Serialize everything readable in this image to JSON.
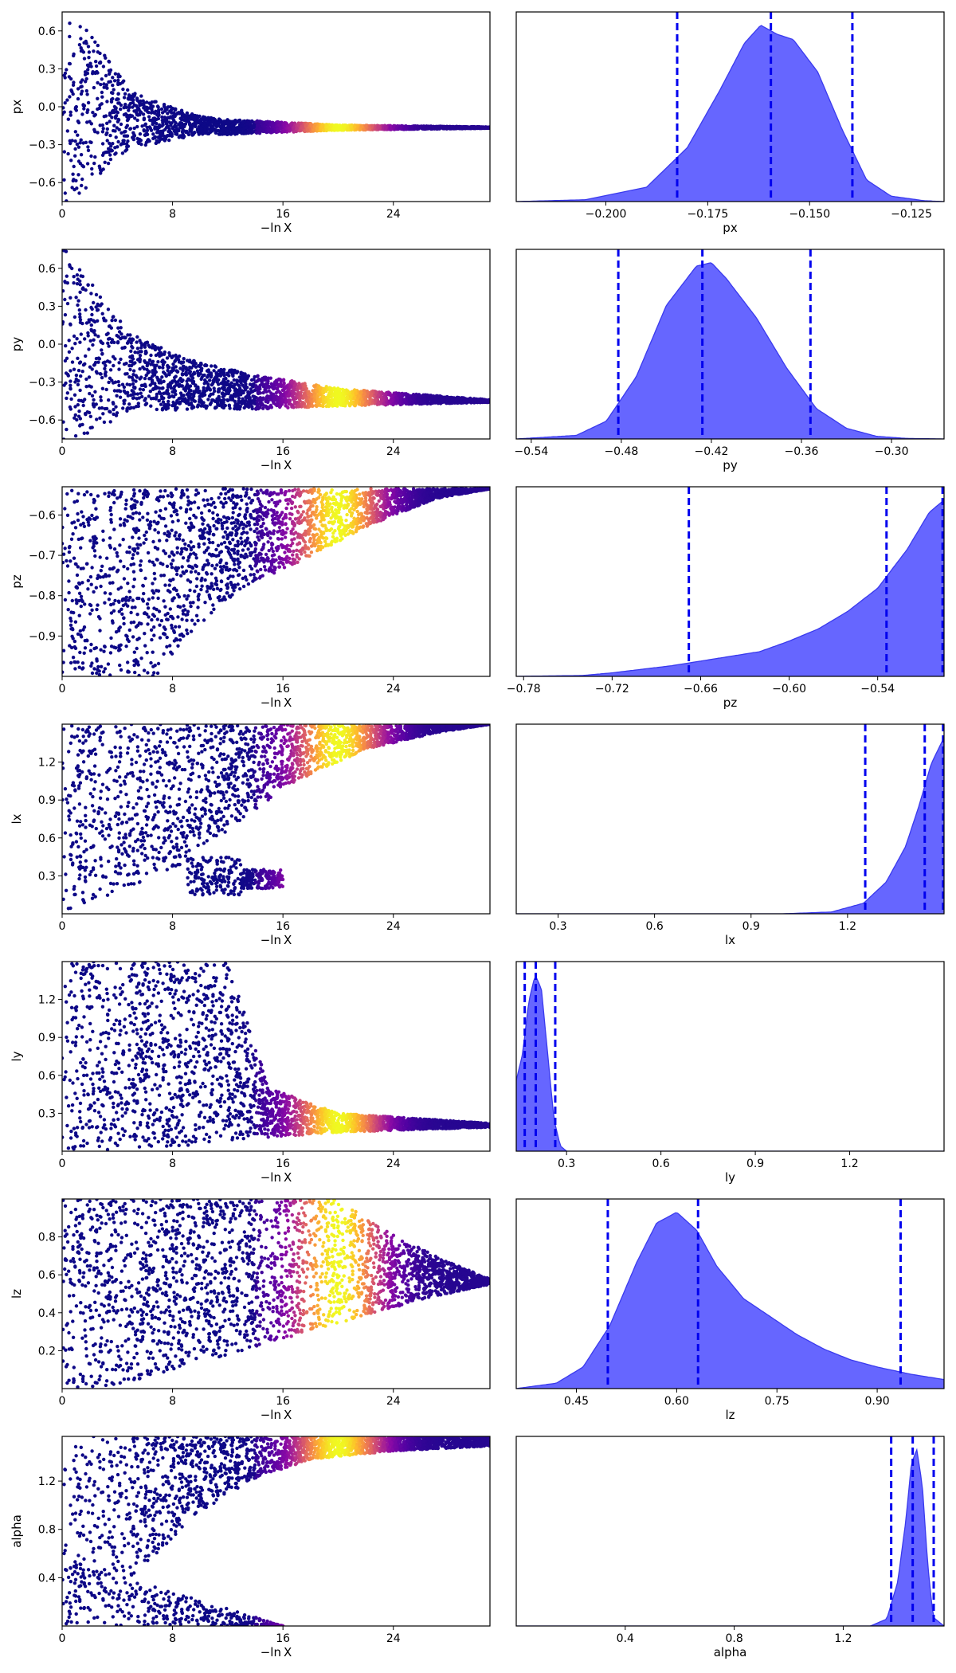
{
  "figure": {
    "background": "#ffffff",
    "kde_fill_color": "#6666ff",
    "quantile_line_color": "#0000ee",
    "colormap": "plasma"
  },
  "chart_data": [
    {
      "type": "scatter",
      "param": "px",
      "xlabel": "−ln X",
      "ylabel": "px",
      "xlim": [
        0,
        31
      ],
      "ylim": [
        -0.75,
        0.75
      ],
      "xticks": [
        "0",
        "8",
        "16",
        "24"
      ],
      "yticks": [
        "0.6",
        "0.3",
        "0.0",
        "−0.3",
        "−0.6"
      ],
      "profile": {
        "center": [
          [
            0,
            0
          ],
          [
            3,
            -0.03
          ],
          [
            6,
            -0.12
          ],
          [
            12,
            -0.16
          ],
          [
            20,
            -0.165
          ],
          [
            31,
            -0.165
          ]
        ],
        "spread": [
          [
            0,
            0.8
          ],
          [
            2,
            0.6
          ],
          [
            5,
            0.22
          ],
          [
            10,
            0.07
          ],
          [
            20,
            0.02
          ],
          [
            31,
            0.005
          ]
        ]
      }
    },
    {
      "type": "area",
      "param": "px",
      "xlabel": "px",
      "xlim": [
        -0.222,
        -0.117
      ],
      "xticks": [
        "−0.200",
        "−0.175",
        "−0.150",
        "−0.125"
      ],
      "kde": {
        "x": [
          -0.222,
          -0.205,
          -0.19,
          -0.18,
          -0.172,
          -0.166,
          -0.162,
          -0.158,
          -0.154,
          -0.148,
          -0.142,
          -0.136,
          -0.13,
          -0.122,
          -0.117
        ],
        "density": [
          0.0,
          0.01,
          0.08,
          0.3,
          0.62,
          0.88,
          0.98,
          0.93,
          0.9,
          0.72,
          0.4,
          0.12,
          0.03,
          0.005,
          0.0
        ]
      },
      "quantiles": [
        -0.1825,
        -0.1595,
        -0.1395
      ]
    },
    {
      "type": "scatter",
      "param": "py",
      "xlabel": "−ln X",
      "ylabel": "py",
      "xlim": [
        0,
        31
      ],
      "ylim": [
        -0.75,
        0.75
      ],
      "xticks": [
        "0",
        "8",
        "16",
        "24"
      ],
      "yticks": [
        "0.6",
        "0.3",
        "0.0",
        "−0.3",
        "−0.6"
      ],
      "profile": {
        "center": [
          [
            0,
            0
          ],
          [
            3,
            -0.15
          ],
          [
            8,
            -0.3
          ],
          [
            14,
            -0.38
          ],
          [
            20,
            -0.42
          ],
          [
            31,
            -0.45
          ]
        ],
        "spread": [
          [
            0,
            0.8
          ],
          [
            2,
            0.6
          ],
          [
            5,
            0.3
          ],
          [
            10,
            0.18
          ],
          [
            20,
            0.07
          ],
          [
            31,
            0.01
          ]
        ]
      }
    },
    {
      "type": "area",
      "param": "py",
      "xlabel": "py",
      "xlim": [
        -0.55,
        -0.265
      ],
      "xticks": [
        "−0.54",
        "−0.48",
        "−0.42",
        "−0.36",
        "−0.30"
      ],
      "kde": {
        "x": [
          -0.55,
          -0.51,
          -0.49,
          -0.47,
          -0.45,
          -0.43,
          -0.42,
          -0.41,
          -0.39,
          -0.37,
          -0.35,
          -0.33,
          -0.31,
          -0.29,
          -0.265
        ],
        "density": [
          0.0,
          0.02,
          0.1,
          0.35,
          0.75,
          0.97,
          0.99,
          0.9,
          0.68,
          0.4,
          0.17,
          0.06,
          0.015,
          0.003,
          0.0
        ]
      },
      "quantiles": [
        -0.482,
        -0.426,
        -0.354
      ]
    },
    {
      "type": "scatter",
      "param": "pz",
      "xlabel": "−ln X",
      "ylabel": "pz",
      "xlim": [
        0,
        31
      ],
      "ylim": [
        -1.0,
        -0.53
      ],
      "xticks": [
        "0",
        "8",
        "16",
        "24"
      ],
      "yticks": [
        "−0.6",
        "−0.7",
        "−0.8",
        "−0.9"
      ],
      "profile": {
        "lower": [
          [
            0,
            -1.0
          ],
          [
            7,
            -1.0
          ],
          [
            9,
            -0.9
          ],
          [
            13,
            -0.78
          ],
          [
            17,
            -0.72
          ],
          [
            22,
            -0.63
          ],
          [
            27,
            -0.56
          ],
          [
            31,
            -0.535
          ]
        ],
        "upper": [
          [
            0,
            -0.535
          ],
          [
            31,
            -0.535
          ]
        ]
      }
    },
    {
      "type": "area",
      "param": "pz",
      "xlabel": "pz",
      "xlim": [
        -0.785,
        -0.495
      ],
      "xticks": [
        "−0.78",
        "−0.72",
        "−0.66",
        "−0.60",
        "−0.54"
      ],
      "kde": {
        "x": [
          -0.785,
          -0.74,
          -0.72,
          -0.68,
          -0.65,
          -0.62,
          -0.6,
          -0.58,
          -0.56,
          -0.54,
          -0.52,
          -0.505,
          -0.495
        ],
        "density": [
          0.0,
          0.005,
          0.02,
          0.06,
          0.1,
          0.14,
          0.2,
          0.27,
          0.37,
          0.5,
          0.72,
          0.93,
          1.0
        ]
      },
      "quantiles": [
        -0.668,
        -0.534,
        -0.496
      ]
    },
    {
      "type": "scatter",
      "param": "lx",
      "xlabel": "−ln X",
      "ylabel": "lx",
      "xlim": [
        0,
        31
      ],
      "ylim": [
        0.0,
        1.5
      ],
      "xticks": [
        "0",
        "8",
        "16",
        "24"
      ],
      "yticks": [
        "1.2",
        "0.9",
        "0.6",
        "0.3"
      ],
      "profile": {
        "lower": [
          [
            0,
            0
          ],
          [
            9,
            0.4
          ],
          [
            13,
            0.75
          ],
          [
            17,
            1.05
          ],
          [
            22,
            1.3
          ],
          [
            27,
            1.43
          ],
          [
            31,
            1.5
          ]
        ],
        "upper": [
          [
            0,
            1.5
          ],
          [
            31,
            1.5
          ]
        ],
        "islands": [
          [
            9,
            13,
            0.15,
            0.45
          ],
          [
            13,
            16,
            0.2,
            0.35
          ]
        ]
      }
    },
    {
      "type": "area",
      "param": "lx",
      "xlabel": "lx",
      "xlim": [
        0.17,
        1.5
      ],
      "xticks": [
        "0.3",
        "0.6",
        "0.9",
        "1.2"
      ],
      "kde": {
        "x": [
          0.17,
          1.0,
          1.15,
          1.25,
          1.32,
          1.38,
          1.42,
          1.46,
          1.5
        ],
        "density": [
          0.0,
          0.0,
          0.01,
          0.06,
          0.18,
          0.38,
          0.6,
          0.85,
          1.0
        ]
      },
      "quantiles": [
        1.255,
        1.44,
        1.497
      ]
    },
    {
      "type": "scatter",
      "param": "ly",
      "xlabel": "−ln X",
      "ylabel": "ly",
      "xlim": [
        0,
        31
      ],
      "ylim": [
        0.0,
        1.5
      ],
      "xticks": [
        "0",
        "8",
        "16",
        "24"
      ],
      "yticks": [
        "1.2",
        "0.9",
        "0.6",
        "0.3"
      ],
      "profile": {
        "lower": [
          [
            0,
            0
          ],
          [
            8,
            0.03
          ],
          [
            14,
            0.1
          ],
          [
            20,
            0.15
          ],
          [
            31,
            0.19
          ]
        ],
        "upper": [
          [
            0,
            1.5
          ],
          [
            8,
            1.5
          ],
          [
            12,
            1.5
          ],
          [
            15,
            0.5
          ],
          [
            20,
            0.3
          ],
          [
            31,
            0.22
          ]
        ]
      }
    },
    {
      "type": "area",
      "param": "ly",
      "xlabel": "ly",
      "xlim": [
        0.14,
        1.5
      ],
      "xticks": [
        "0.3",
        "0.6",
        "0.9",
        "1.2"
      ],
      "kde": {
        "x": [
          0.14,
          0.16,
          0.18,
          0.2,
          0.22,
          0.24,
          0.26,
          0.28,
          0.3,
          1.5
        ],
        "density": [
          0.4,
          0.55,
          0.85,
          1.0,
          0.92,
          0.55,
          0.18,
          0.03,
          0.0,
          0.0
        ]
      },
      "quantiles": [
        0.167,
        0.202,
        0.264
      ]
    },
    {
      "type": "scatter",
      "param": "lz",
      "xlabel": "−ln X",
      "ylabel": "lz",
      "xlim": [
        0,
        31
      ],
      "ylim": [
        0.0,
        1.0
      ],
      "xticks": [
        "0",
        "8",
        "16",
        "24"
      ],
      "yticks": [
        "0.8",
        "0.6",
        "0.4",
        "0.2"
      ],
      "profile": {
        "lower": [
          [
            0,
            0
          ],
          [
            4,
            0.02
          ],
          [
            8,
            0.1
          ],
          [
            14,
            0.22
          ],
          [
            20,
            0.34
          ],
          [
            26,
            0.47
          ],
          [
            31,
            0.55
          ]
        ],
        "upper": [
          [
            0,
            1.0
          ],
          [
            20,
            1.0
          ],
          [
            23,
            0.85
          ],
          [
            27,
            0.7
          ],
          [
            31,
            0.58
          ]
        ]
      }
    },
    {
      "type": "area",
      "param": "lz",
      "xlabel": "lz",
      "xlim": [
        0.36,
        1.0
      ],
      "xticks": [
        "0.45",
        "0.60",
        "0.75",
        "0.90"
      ],
      "kde": {
        "x": [
          0.36,
          0.42,
          0.46,
          0.5,
          0.54,
          0.57,
          0.6,
          0.63,
          0.66,
          0.7,
          0.74,
          0.78,
          0.82,
          0.86,
          0.9,
          0.95,
          1.0
        ],
        "density": [
          0.0,
          0.03,
          0.12,
          0.35,
          0.7,
          0.92,
          0.98,
          0.88,
          0.68,
          0.5,
          0.4,
          0.3,
          0.22,
          0.16,
          0.12,
          0.08,
          0.05
        ]
      },
      "quantiles": [
        0.497,
        0.632,
        0.935
      ]
    },
    {
      "type": "scatter",
      "param": "alpha",
      "xlabel": "−ln X",
      "ylabel": "alpha",
      "xlim": [
        0,
        31
      ],
      "ylim": [
        0.0,
        1.57
      ],
      "xticks": [
        "0",
        "8",
        "16",
        "24"
      ],
      "yticks": [
        "1.2",
        "0.8",
        "0.4"
      ],
      "profile": {
        "lower": [
          [
            0,
            0
          ],
          [
            6,
            0.5
          ],
          [
            10,
            0.95
          ],
          [
            14,
            1.22
          ],
          [
            18,
            1.38
          ],
          [
            24,
            1.45
          ],
          [
            31,
            1.49
          ]
        ],
        "upper": [
          [
            0,
            1.57
          ],
          [
            31,
            1.57
          ]
        ],
        "lower_band": [
          [
            0,
            0.0
          ],
          [
            14,
            0.0
          ],
          [
            16,
            0.0
          ]
        ],
        "lower_top": [
          [
            0,
            0.55
          ],
          [
            6,
            0.35
          ],
          [
            11,
            0.18
          ],
          [
            16,
            0.0
          ]
        ]
      }
    },
    {
      "type": "area",
      "param": "alpha",
      "xlabel": "alpha",
      "xlim": [
        0.0,
        1.57
      ],
      "xticks": [
        "0.4",
        "0.8",
        "1.2"
      ],
      "kde": {
        "x": [
          0.0,
          1.3,
          1.36,
          1.4,
          1.43,
          1.45,
          1.47,
          1.49,
          1.51,
          1.53,
          1.57
        ],
        "density": [
          0.0,
          0.0,
          0.04,
          0.25,
          0.6,
          0.92,
          1.0,
          0.8,
          0.35,
          0.05,
          0.0
        ]
      },
      "quantiles": [
        1.376,
        1.455,
        1.532
      ]
    }
  ]
}
